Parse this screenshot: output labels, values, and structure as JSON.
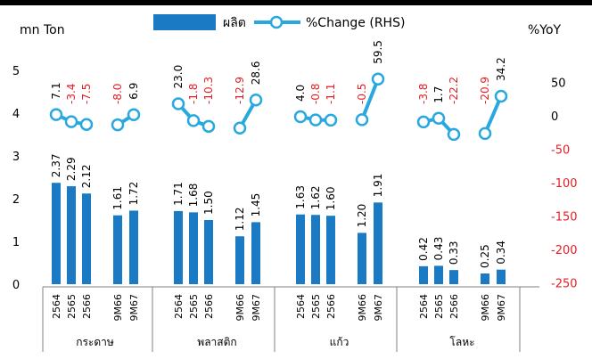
{
  "colors": {
    "bar": "#1A7BC4",
    "line": "#29A8E0",
    "negative": "#E31E24",
    "positive": "#000000",
    "axis": "#808080"
  },
  "chart_data": {
    "type": "bar",
    "title": "",
    "left_unit": "mn Ton",
    "right_unit": "%YoY",
    "legend": {
      "bar_label": "ผลิต",
      "line_label": "%Change (RHS)",
      "placement": "top"
    },
    "left_axis": {
      "min": 0,
      "max": 5,
      "ticks": [
        0,
        1,
        2,
        3,
        4,
        5
      ]
    },
    "right_axis": {
      "min": -250,
      "max": 50,
      "ticks": [
        50,
        0,
        -50,
        -100,
        -150,
        -200,
        -250
      ]
    },
    "groups": [
      {
        "name": "กระดาษ",
        "categories": [
          "2564",
          "2565",
          "2566",
          "9M66",
          "9M67"
        ],
        "values": [
          2.37,
          2.29,
          2.12,
          1.61,
          1.72
        ],
        "change": [
          "7.1",
          "-3.4",
          "-7.5",
          "-8.0",
          "6.9"
        ]
      },
      {
        "name": "พลาสติก",
        "categories": [
          "2564",
          "2565",
          "2566",
          "9M66",
          "9M67"
        ],
        "values": [
          1.71,
          1.68,
          1.5,
          1.12,
          1.45
        ],
        "change": [
          "23.0",
          "-1.8",
          "-10.3",
          "-12.9",
          "28.6"
        ]
      },
      {
        "name": "แก้ว",
        "categories": [
          "2564",
          "2565",
          "2566",
          "9M66",
          "9M67"
        ],
        "values": [
          1.63,
          1.62,
          1.6,
          1.2,
          1.91
        ],
        "change": [
          "4.0",
          "-0.8",
          "-1.1",
          "-0.5",
          "59.5"
        ]
      },
      {
        "name": "โลหะ",
        "categories": [
          "2564",
          "2565",
          "2566",
          "9M66",
          "9M67"
        ],
        "values": [
          0.42,
          0.43,
          0.33,
          0.25,
          0.34
        ],
        "change": [
          "-3.8",
          "1.7",
          "-22.2",
          "-20.9",
          "34.2"
        ]
      }
    ]
  }
}
